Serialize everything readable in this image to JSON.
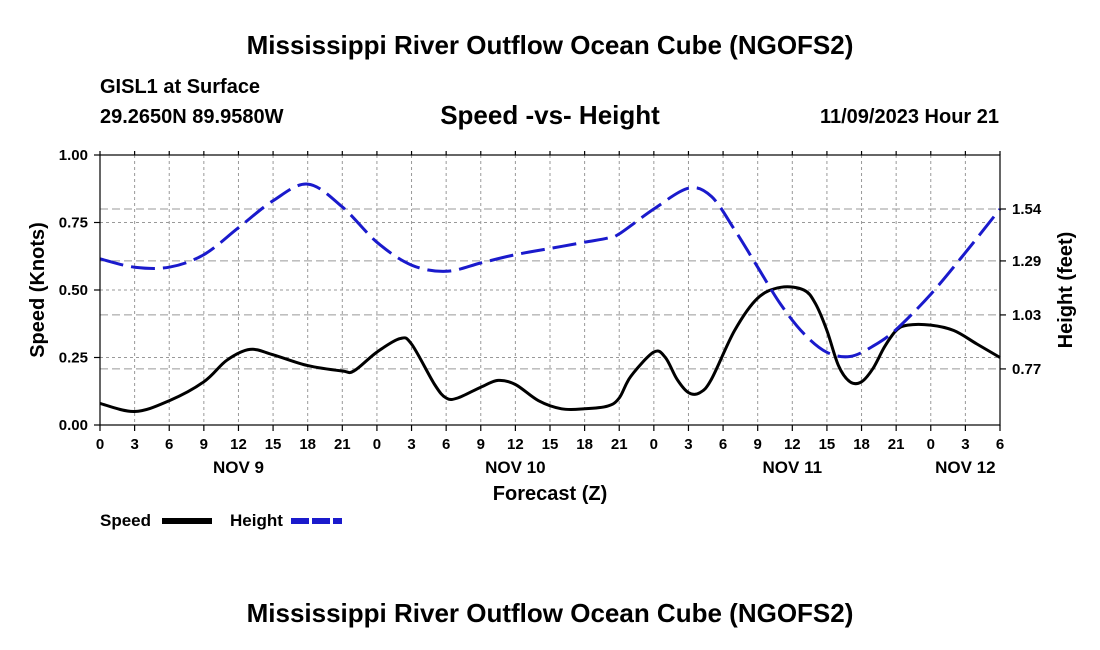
{
  "header": {
    "title": "Mississippi River Outflow Ocean Cube (NGOFS2)",
    "station": "GISL1 at Surface",
    "coords": "29.2650N  89.9580W",
    "subtitle": "Speed -vs- Height",
    "datetime": "11/09/2023 Hour 21"
  },
  "footer": {
    "title": "Mississippi River Outflow Ocean Cube (NGOFS2)"
  },
  "legend": {
    "speed_label": "Speed",
    "height_label": "Height"
  },
  "colors": {
    "speed": "#000000",
    "height": "#1a1acc",
    "grid": "#999999"
  },
  "chart_data": {
    "type": "line",
    "xlabel": "Forecast (Z)",
    "ylabel_left": "Speed (Knots)",
    "ylabel_right": "Height (feet)",
    "x_range_hours": [
      0,
      78
    ],
    "x_ticks": [
      "0",
      "3",
      "6",
      "9",
      "12",
      "15",
      "18",
      "21",
      "0",
      "3",
      "6",
      "9",
      "12",
      "15",
      "18",
      "21",
      "0",
      "3",
      "6",
      "9",
      "12",
      "15",
      "18",
      "21",
      "0",
      "3",
      "6"
    ],
    "day_labels": [
      {
        "label": "NOV 9",
        "hour": 12
      },
      {
        "label": "NOV 10",
        "hour": 36
      },
      {
        "label": "NOV 11",
        "hour": 60
      },
      {
        "label": "NOV 12",
        "hour": 75
      }
    ],
    "ylim_left": [
      0,
      1.0
    ],
    "y_ticks_left": [
      "0.00",
      "0.25",
      "0.50",
      "0.75",
      "1.00"
    ],
    "ylim_right": [
      0.5,
      1.8
    ],
    "y_ticks_right": [
      {
        "label": "0.77",
        "value": 0.77
      },
      {
        "label": "1.03",
        "value": 1.03
      },
      {
        "label": "1.29",
        "value": 1.29
      },
      {
        "label": "1.54",
        "value": 1.54
      }
    ],
    "series": [
      {
        "name": "Speed",
        "axis": "left",
        "style": "solid",
        "points": [
          [
            0,
            0.08
          ],
          [
            3,
            0.05
          ],
          [
            6,
            0.09
          ],
          [
            9,
            0.16
          ],
          [
            11,
            0.24
          ],
          [
            13,
            0.28
          ],
          [
            15,
            0.26
          ],
          [
            18,
            0.22
          ],
          [
            21,
            0.2
          ],
          [
            22,
            0.2
          ],
          [
            24,
            0.27
          ],
          [
            26,
            0.32
          ],
          [
            27,
            0.3
          ],
          [
            29,
            0.15
          ],
          [
            30,
            0.1
          ],
          [
            31,
            0.1
          ],
          [
            33,
            0.14
          ],
          [
            34.5,
            0.165
          ],
          [
            36,
            0.15
          ],
          [
            38,
            0.09
          ],
          [
            40,
            0.06
          ],
          [
            42,
            0.06
          ],
          [
            44,
            0.07
          ],
          [
            45,
            0.1
          ],
          [
            46,
            0.18
          ],
          [
            48,
            0.27
          ],
          [
            49,
            0.25
          ],
          [
            50,
            0.17
          ],
          [
            51,
            0.12
          ],
          [
            52,
            0.12
          ],
          [
            53,
            0.17
          ],
          [
            55,
            0.35
          ],
          [
            57,
            0.47
          ],
          [
            59,
            0.51
          ],
          [
            61,
            0.5
          ],
          [
            62,
            0.45
          ],
          [
            63,
            0.35
          ],
          [
            64,
            0.22
          ],
          [
            65,
            0.16
          ],
          [
            66,
            0.16
          ],
          [
            67,
            0.21
          ],
          [
            68,
            0.29
          ],
          [
            69,
            0.35
          ],
          [
            70,
            0.37
          ],
          [
            72,
            0.37
          ],
          [
            74,
            0.35
          ],
          [
            76,
            0.3
          ],
          [
            78,
            0.25
          ]
        ]
      },
      {
        "name": "Height",
        "axis": "right",
        "style": "dashed",
        "points": [
          [
            0,
            1.3
          ],
          [
            3,
            1.26
          ],
          [
            6,
            1.26
          ],
          [
            9,
            1.32
          ],
          [
            12,
            1.45
          ],
          [
            15,
            1.58
          ],
          [
            18,
            1.66
          ],
          [
            21,
            1.55
          ],
          [
            24,
            1.38
          ],
          [
            27,
            1.27
          ],
          [
            30,
            1.24
          ],
          [
            33,
            1.28
          ],
          [
            36,
            1.32
          ],
          [
            39,
            1.35
          ],
          [
            42,
            1.38
          ],
          [
            44,
            1.4
          ],
          [
            45,
            1.42
          ],
          [
            48,
            1.54
          ],
          [
            51,
            1.64
          ],
          [
            53,
            1.6
          ],
          [
            55,
            1.44
          ],
          [
            57,
            1.26
          ],
          [
            59,
            1.08
          ],
          [
            61,
            0.94
          ],
          [
            63,
            0.85
          ],
          [
            65,
            0.83
          ],
          [
            67,
            0.88
          ],
          [
            69,
            0.96
          ],
          [
            72,
            1.13
          ],
          [
            75,
            1.33
          ],
          [
            78,
            1.54
          ]
        ]
      }
    ]
  }
}
